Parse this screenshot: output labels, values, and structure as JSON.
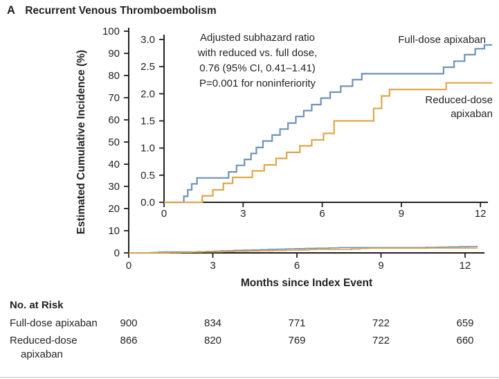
{
  "panel": {
    "letter": "A",
    "title": "Recurrent Venous Thromboembolism"
  },
  "colors": {
    "axis": "#231f20",
    "text": "#231f20",
    "full_dose": "#6e92b8",
    "reduced_dose": "#dda74a",
    "rule": "#bfbfbf"
  },
  "chart_data": {
    "type": "line",
    "style": "step-cumulative-incidence-with-inset",
    "title": "Recurrent Venous Thromboembolism",
    "xlabel": "Months since Index Event",
    "ylabel": "Estimated Cumulative Incidence (%)",
    "outer_axis": {
      "xlim": [
        0,
        12.7
      ],
      "ylim": [
        0,
        100
      ],
      "xticks": [
        0,
        3,
        6,
        9,
        12
      ],
      "yticks": [
        0,
        10,
        20,
        30,
        40,
        50,
        60,
        70,
        80,
        90,
        100
      ]
    },
    "inset_axis": {
      "xlim": [
        0,
        12.3
      ],
      "ylim": [
        0,
        3.0
      ],
      "xticks": [
        0,
        3,
        6,
        9,
        12
      ],
      "yticks": [
        0,
        0.5,
        1,
        1.5,
        2,
        2.5,
        3
      ]
    },
    "annotation_lines": [
      "Adjusted subhazard ratio",
      "with reduced vs. full dose,",
      "0.76 (95% CI, 0.41–1.41)",
      "P=0.001 for noninferiority"
    ],
    "series": [
      {
        "name": "Full-dose apixaban",
        "label_lines": [
          "Full-dose apixaban"
        ],
        "color": "#6e92b8",
        "end_x": 12.45,
        "steps": [
          [
            0,
            0
          ],
          [
            0.75,
            0.11
          ],
          [
            0.9,
            0.23
          ],
          [
            1.05,
            0.34
          ],
          [
            1.25,
            0.45
          ],
          [
            2.45,
            0.56
          ],
          [
            2.75,
            0.68
          ],
          [
            3.05,
            0.79
          ],
          [
            3.3,
            0.9
          ],
          [
            3.5,
            1.01
          ],
          [
            3.75,
            1.13
          ],
          [
            4.1,
            1.24
          ],
          [
            4.4,
            1.35
          ],
          [
            4.7,
            1.46
          ],
          [
            5.0,
            1.58
          ],
          [
            5.3,
            1.69
          ],
          [
            5.6,
            1.8
          ],
          [
            5.95,
            1.92
          ],
          [
            6.3,
            2.03
          ],
          [
            6.7,
            2.14
          ],
          [
            7.15,
            2.26
          ],
          [
            7.5,
            2.37
          ],
          [
            10.6,
            2.49
          ],
          [
            11.0,
            2.6
          ],
          [
            11.4,
            2.72
          ],
          [
            11.8,
            2.83
          ],
          [
            12.15,
            2.9
          ]
        ]
      },
      {
        "name": "Reduced-dose apixaban",
        "label_lines": [
          "Reduced-dose",
          "apixaban"
        ],
        "color": "#dda74a",
        "end_x": 12.45,
        "steps": [
          [
            0,
            0
          ],
          [
            1.45,
            0.12
          ],
          [
            1.85,
            0.23
          ],
          [
            2.25,
            0.35
          ],
          [
            2.6,
            0.46
          ],
          [
            3.35,
            0.58
          ],
          [
            3.8,
            0.69
          ],
          [
            4.25,
            0.81
          ],
          [
            4.65,
            0.92
          ],
          [
            5.15,
            1.04
          ],
          [
            5.6,
            1.15
          ],
          [
            6.05,
            1.27
          ],
          [
            6.45,
            1.5
          ],
          [
            7.95,
            1.73
          ],
          [
            8.25,
            1.96
          ],
          [
            8.55,
            2.08
          ],
          [
            10.7,
            2.2
          ]
        ]
      }
    ],
    "risk_table": {
      "title": "No. at Risk",
      "rows": [
        {
          "label_lines": [
            "Full-dose apixaban"
          ],
          "values": [
            "900",
            "834",
            "771",
            "722",
            "659"
          ]
        },
        {
          "label_lines": [
            "Reduced-dose",
            "apixaban"
          ],
          "values": [
            "866",
            "820",
            "769",
            "722",
            "660"
          ]
        }
      ]
    }
  }
}
